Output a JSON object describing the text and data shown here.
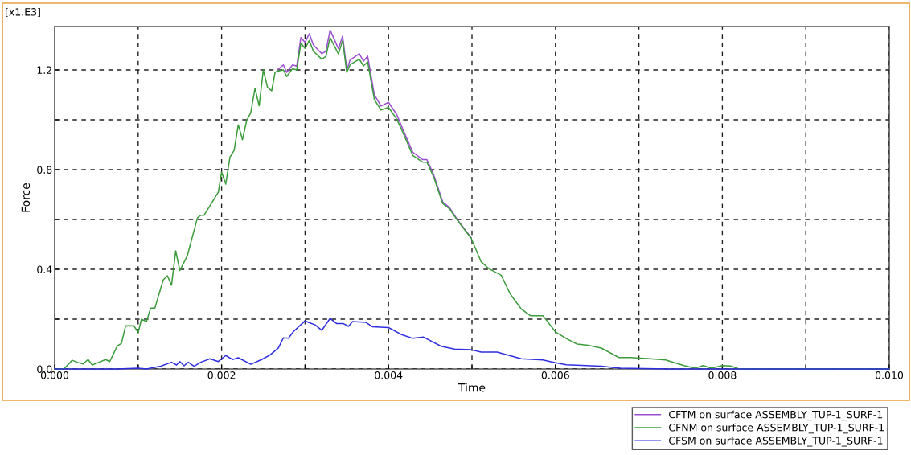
{
  "chart_data": {
    "type": "line",
    "xlabel": "Time",
    "ylabel": "Force",
    "annotations": [
      "[x1.E3]"
    ],
    "xlim": [
      0,
      0.01
    ],
    "ylim": [
      0,
      1.374
    ],
    "xticks": [
      {
        "value": 0,
        "label": "0.000"
      },
      {
        "value": 0.001,
        "label": null
      },
      {
        "value": 0.002,
        "label": "0.002"
      },
      {
        "value": 0.003,
        "label": null
      },
      {
        "value": 0.004,
        "label": "0.004"
      },
      {
        "value": 0.005,
        "label": null
      },
      {
        "value": 0.006,
        "label": "0.006"
      },
      {
        "value": 0.007,
        "label": null
      },
      {
        "value": 0.008,
        "label": "0.008"
      },
      {
        "value": 0.009,
        "label": null
      },
      {
        "value": 0.01,
        "label": "0.010"
      }
    ],
    "yticks": [
      {
        "value": 0,
        "label": "0.0"
      },
      {
        "value": 0.2,
        "label": null
      },
      {
        "value": 0.4,
        "label": "0.4"
      },
      {
        "value": 0.6,
        "label": null
      },
      {
        "value": 0.8,
        "label": "0.8"
      },
      {
        "value": 1.0,
        "label": null
      },
      {
        "value": 1.2,
        "label": "1.2"
      }
    ],
    "grid": true,
    "legend": "bottom right",
    "line_style": "solid",
    "marker": "none",
    "series": [
      {
        "name": "CFTM on surface ASSEMBLY_TUP-1_SURF-1",
        "color": "#9b4fd0",
        "x": [
          0.00267,
          0.00274,
          0.00278,
          0.00285,
          0.0029,
          0.00295,
          0.003,
          0.00305,
          0.0031,
          0.0032,
          0.00325,
          0.0033,
          0.0034,
          0.00345,
          0.0035,
          0.00354,
          0.00365,
          0.0037,
          0.00375,
          0.00383,
          0.00391,
          0.004,
          0.0041,
          0.00418,
          0.00429,
          0.00441,
          0.00446,
          0.00454,
          0.00465,
          0.00473,
          0.00483,
          0.00499
        ],
        "values": [
          1.2,
          1.22,
          1.19,
          1.22,
          1.215,
          1.33,
          1.31,
          1.345,
          1.3,
          1.265,
          1.275,
          1.36,
          1.285,
          1.335,
          1.2,
          1.24,
          1.265,
          1.235,
          1.255,
          1.1,
          1.055,
          1.07,
          1.02,
          0.955,
          0.87,
          0.84,
          0.84,
          0.78,
          0.67,
          0.648,
          0.597,
          0.527
        ]
      },
      {
        "name": "CFNM on surface ASSEMBLY_TUP-1_SURF-1",
        "color": "#3c9c3c",
        "x": [
          0,
          0.00011,
          0.00021,
          0.00027,
          0.00034,
          0.0004,
          0.00045,
          0.00053,
          0.00061,
          0.00066,
          0.00075,
          0.0008,
          0.00085,
          0.00095,
          0.001,
          0.00104,
          0.0011,
          0.00115,
          0.0012,
          0.0013,
          0.00135,
          0.0014,
          0.00145,
          0.0015,
          0.00159,
          0.00171,
          0.00175,
          0.00179,
          0.00196,
          0.002,
          0.00205,
          0.0021,
          0.00215,
          0.0022,
          0.00225,
          0.0023,
          0.00235,
          0.0024,
          0.00245,
          0.0025,
          0.00255,
          0.0026,
          0.00264,
          0.00267,
          0.00274,
          0.00278,
          0.00285,
          0.0029,
          0.00295,
          0.003,
          0.00305,
          0.0031,
          0.0032,
          0.00325,
          0.0033,
          0.0034,
          0.00345,
          0.0035,
          0.00354,
          0.00365,
          0.0037,
          0.00375,
          0.00383,
          0.00391,
          0.004,
          0.0041,
          0.00418,
          0.00429,
          0.00441,
          0.00446,
          0.00454,
          0.00465,
          0.00473,
          0.00483,
          0.00499,
          0.00511,
          0.0052,
          0.00535,
          0.00546,
          0.00559,
          0.0057,
          0.00585,
          0.006,
          0.00613,
          0.00626,
          0.00639,
          0.00655,
          0.00676,
          0.0069,
          0.00713,
          0.00732,
          0.00754,
          0.00767,
          0.00777,
          0.00787,
          0.008,
          0.0081,
          0.0082,
          0.01
        ],
        "values": [
          0,
          0,
          0.035,
          0.027,
          0.02,
          0.038,
          0.016,
          0.027,
          0.038,
          0.03,
          0.092,
          0.103,
          0.173,
          0.173,
          0.146,
          0.2,
          0.19,
          0.244,
          0.244,
          0.357,
          0.374,
          0.336,
          0.474,
          0.395,
          0.455,
          0.606,
          0.617,
          0.617,
          0.709,
          0.79,
          0.742,
          0.85,
          0.877,
          0.98,
          0.92,
          0.996,
          1.029,
          1.126,
          1.056,
          1.2,
          1.13,
          1.116,
          1.19,
          1.195,
          1.2,
          1.173,
          1.205,
          1.2,
          1.307,
          1.286,
          1.318,
          1.275,
          1.243,
          1.254,
          1.329,
          1.264,
          1.318,
          1.19,
          1.221,
          1.243,
          1.216,
          1.232,
          1.082,
          1.039,
          1.05,
          1.002,
          0.943,
          0.857,
          0.83,
          0.83,
          0.771,
          0.664,
          0.643,
          0.594,
          0.525,
          0.43,
          0.403,
          0.376,
          0.3,
          0.241,
          0.214,
          0.214,
          0.149,
          0.122,
          0.1,
          0.095,
          0.084,
          0.046,
          0.046,
          0.041,
          0.036,
          0.014,
          0.003,
          0.014,
          0.003,
          0.014,
          0.012,
          0,
          0
        ]
      },
      {
        "name": "CFSM on surface ASSEMBLY_TUP-1_SURF-1",
        "color": "#2f2fe0",
        "x": [
          0,
          0.00075,
          0.001,
          0.0011,
          0.00127,
          0.0014,
          0.00146,
          0.0015,
          0.00155,
          0.0016,
          0.00167,
          0.00175,
          0.00186,
          0.00196,
          0.00205,
          0.00213,
          0.0022,
          0.00235,
          0.00248,
          0.00258,
          0.00268,
          0.00274,
          0.0028,
          0.00286,
          0.003,
          0.00304,
          0.00312,
          0.0032,
          0.0033,
          0.00338,
          0.00346,
          0.00352,
          0.00357,
          0.00373,
          0.00381,
          0.004,
          0.00415,
          0.00429,
          0.00442,
          0.00463,
          0.00479,
          0.00499,
          0.00511,
          0.0053,
          0.00559,
          0.00585,
          0.006,
          0.00613,
          0.00655,
          0.00678,
          0.00735,
          0.01
        ],
        "values": [
          0,
          0,
          0.003,
          0,
          0.011,
          0.027,
          0.016,
          0.03,
          0.013,
          0.027,
          0.011,
          0.027,
          0.041,
          0.03,
          0.054,
          0.038,
          0.045,
          0.019,
          0.038,
          0.056,
          0.084,
          0.125,
          0.123,
          0.15,
          0.193,
          0.187,
          0.177,
          0.155,
          0.203,
          0.182,
          0.182,
          0.171,
          0.19,
          0.187,
          0.169,
          0.166,
          0.139,
          0.123,
          0.128,
          0.091,
          0.08,
          0.077,
          0.068,
          0.068,
          0.041,
          0.036,
          0.025,
          0.017,
          0.011,
          0.003,
          0,
          0
        ]
      }
    ]
  }
}
